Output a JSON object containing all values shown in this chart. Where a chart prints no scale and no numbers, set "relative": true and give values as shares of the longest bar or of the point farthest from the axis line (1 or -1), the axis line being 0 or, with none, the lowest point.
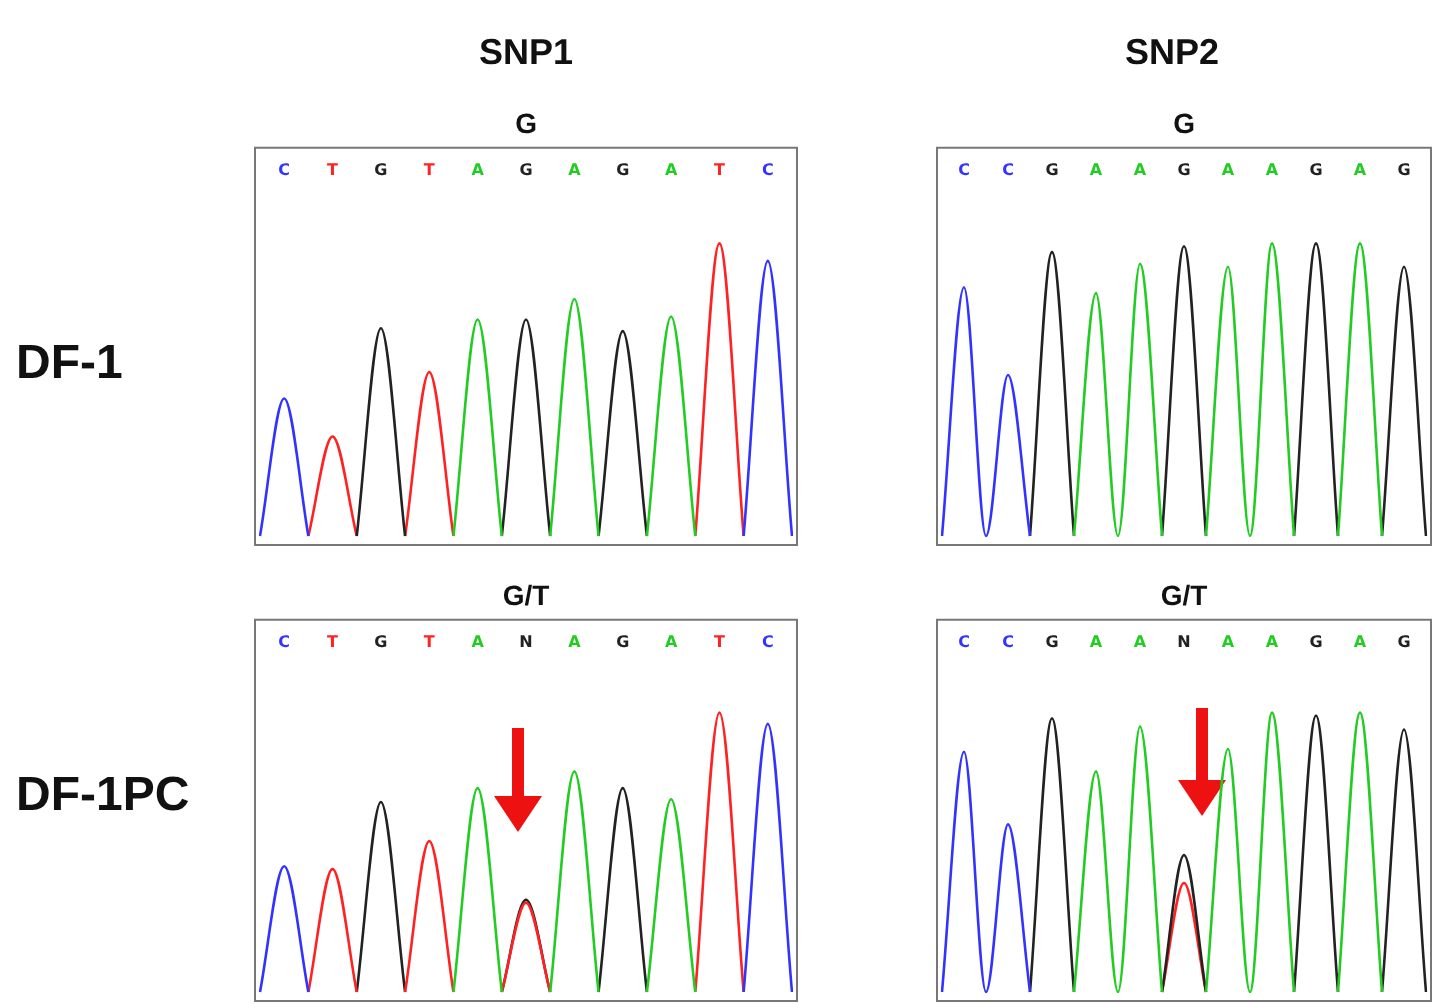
{
  "chart_data": [
    {
      "type": "line",
      "title": "G",
      "ylabel": "DF-1",
      "annotations": [
        "SNP1"
      ],
      "relative": true,
      "legend": false,
      "grid": false,
      "categories": [
        null,
        "C",
        null,
        "T",
        null,
        "G",
        null,
        "T",
        null,
        "A",
        null,
        "G",
        null,
        "A",
        null,
        "G",
        null,
        "A",
        null,
        "T",
        null,
        "C",
        null
      ],
      "series": [
        {
          "color": "#22cc22",
          "values": [
            null,
            null,
            null,
            null,
            null,
            null,
            null,
            null,
            0,
            0.74,
            0,
            null,
            0,
            0.81,
            0,
            null,
            0,
            0.75,
            0,
            null,
            null,
            null,
            null
          ]
        },
        {
          "color": "#3333ff",
          "values": [
            0,
            0.47,
            0,
            null,
            null,
            null,
            null,
            null,
            null,
            null,
            null,
            null,
            null,
            null,
            null,
            null,
            null,
            null,
            null,
            null,
            0,
            0.94,
            0
          ]
        },
        {
          "color": "#222222",
          "values": [
            null,
            null,
            null,
            null,
            0,
            0.71,
            0,
            null,
            null,
            null,
            0,
            0.74,
            0,
            null,
            0,
            0.7,
            0,
            null,
            null,
            null,
            null,
            null,
            null
          ]
        },
        {
          "color": "#ff2222",
          "values": [
            null,
            null,
            0,
            0.34,
            0,
            null,
            0,
            0.56,
            0,
            null,
            null,
            null,
            null,
            null,
            null,
            null,
            null,
            null,
            0,
            1,
            0,
            null,
            null
          ]
        }
      ]
    },
    {
      "type": "line",
      "title": "G",
      "annotations": [
        "SNP2"
      ],
      "relative": true,
      "legend": false,
      "grid": false,
      "categories": [
        null,
        "C",
        null,
        "C",
        null,
        "G",
        null,
        "A",
        null,
        "A",
        null,
        "G",
        null,
        "A",
        null,
        "A",
        null,
        "G",
        null,
        "A",
        null,
        "G",
        null
      ],
      "series": [
        {
          "color": "#22cc22",
          "values": [
            null,
            null,
            null,
            null,
            null,
            null,
            0,
            0.83,
            0,
            0.93,
            0,
            null,
            0,
            0.92,
            0,
            1,
            0,
            null,
            0,
            1,
            0,
            null,
            null
          ]
        },
        {
          "color": "#3333ff",
          "values": [
            0,
            0.85,
            0,
            0.55,
            0,
            null,
            null,
            null,
            null,
            null,
            null,
            null,
            null,
            null,
            null,
            null,
            null,
            null,
            null,
            null,
            null,
            null,
            null
          ]
        },
        {
          "color": "#222222",
          "values": [
            null,
            null,
            null,
            null,
            0,
            0.97,
            0,
            null,
            null,
            null,
            0,
            0.99,
            0,
            null,
            null,
            null,
            0,
            1,
            0,
            null,
            0,
            0.92,
            0
          ]
        }
      ]
    },
    {
      "type": "line",
      "title": "G/T",
      "ylabel": "DF-1PC",
      "relative": true,
      "legend": false,
      "grid": false,
      "categories": [
        null,
        "C",
        null,
        "T",
        null,
        "G",
        null,
        "T",
        null,
        "A",
        null,
        "N",
        null,
        "A",
        null,
        "G",
        null,
        "A",
        null,
        "T",
        null,
        "C",
        null
      ],
      "series": [
        {
          "color": "#22cc22",
          "values": [
            null,
            null,
            null,
            null,
            null,
            null,
            null,
            null,
            0,
            0.73,
            0,
            null,
            0,
            0.79,
            0,
            null,
            0,
            0.69,
            0,
            null,
            null,
            null,
            null
          ]
        },
        {
          "color": "#3333ff",
          "values": [
            0,
            0.45,
            0,
            null,
            null,
            null,
            null,
            null,
            null,
            null,
            null,
            null,
            null,
            null,
            null,
            null,
            null,
            null,
            null,
            null,
            0,
            0.96,
            0
          ]
        },
        {
          "color": "#ff2222",
          "values": [
            null,
            null,
            0,
            0.44,
            0,
            null,
            0,
            0.54,
            0,
            null,
            0,
            0.32,
            0,
            null,
            null,
            null,
            null,
            null,
            0,
            1,
            0,
            null,
            null
          ]
        },
        {
          "color": "#222222",
          "values": [
            null,
            null,
            null,
            null,
            0,
            0.68,
            0,
            null,
            null,
            null,
            0,
            0.33,
            0,
            null,
            0,
            0.73,
            0,
            null,
            null,
            null,
            null,
            null,
            null
          ]
        }
      ]
    },
    {
      "type": "line",
      "title": "G/T",
      "relative": true,
      "legend": false,
      "grid": false,
      "categories": [
        null,
        "C",
        null,
        "C",
        null,
        "G",
        null,
        "A",
        null,
        "A",
        null,
        "N",
        null,
        "A",
        null,
        "A",
        null,
        "G",
        null,
        "A",
        null,
        "G",
        null
      ],
      "series": [
        {
          "color": "#22cc22",
          "values": [
            null,
            null,
            null,
            null,
            null,
            null,
            0,
            0.79,
            0,
            0.95,
            0,
            null,
            0,
            0.87,
            0,
            1,
            0,
            null,
            0,
            1,
            0,
            null,
            null
          ]
        },
        {
          "color": "#3333ff",
          "values": [
            0,
            0.86,
            0,
            0.6,
            0,
            null,
            null,
            null,
            null,
            null,
            null,
            null,
            null,
            null,
            null,
            null,
            null,
            null,
            null,
            null,
            null,
            null,
            null
          ]
        },
        {
          "color": "#222222",
          "values": [
            null,
            null,
            null,
            null,
            0,
            0.98,
            0,
            null,
            null,
            null,
            0,
            0.49,
            0,
            null,
            null,
            null,
            0,
            0.99,
            0,
            null,
            0,
            0.94,
            0
          ]
        },
        {
          "color": "#ff2222",
          "values": [
            null,
            null,
            null,
            null,
            null,
            null,
            null,
            null,
            null,
            null,
            0,
            0.39,
            0,
            null,
            null,
            null,
            null,
            null,
            null,
            null,
            null,
            null,
            null
          ]
        }
      ]
    }
  ]
}
